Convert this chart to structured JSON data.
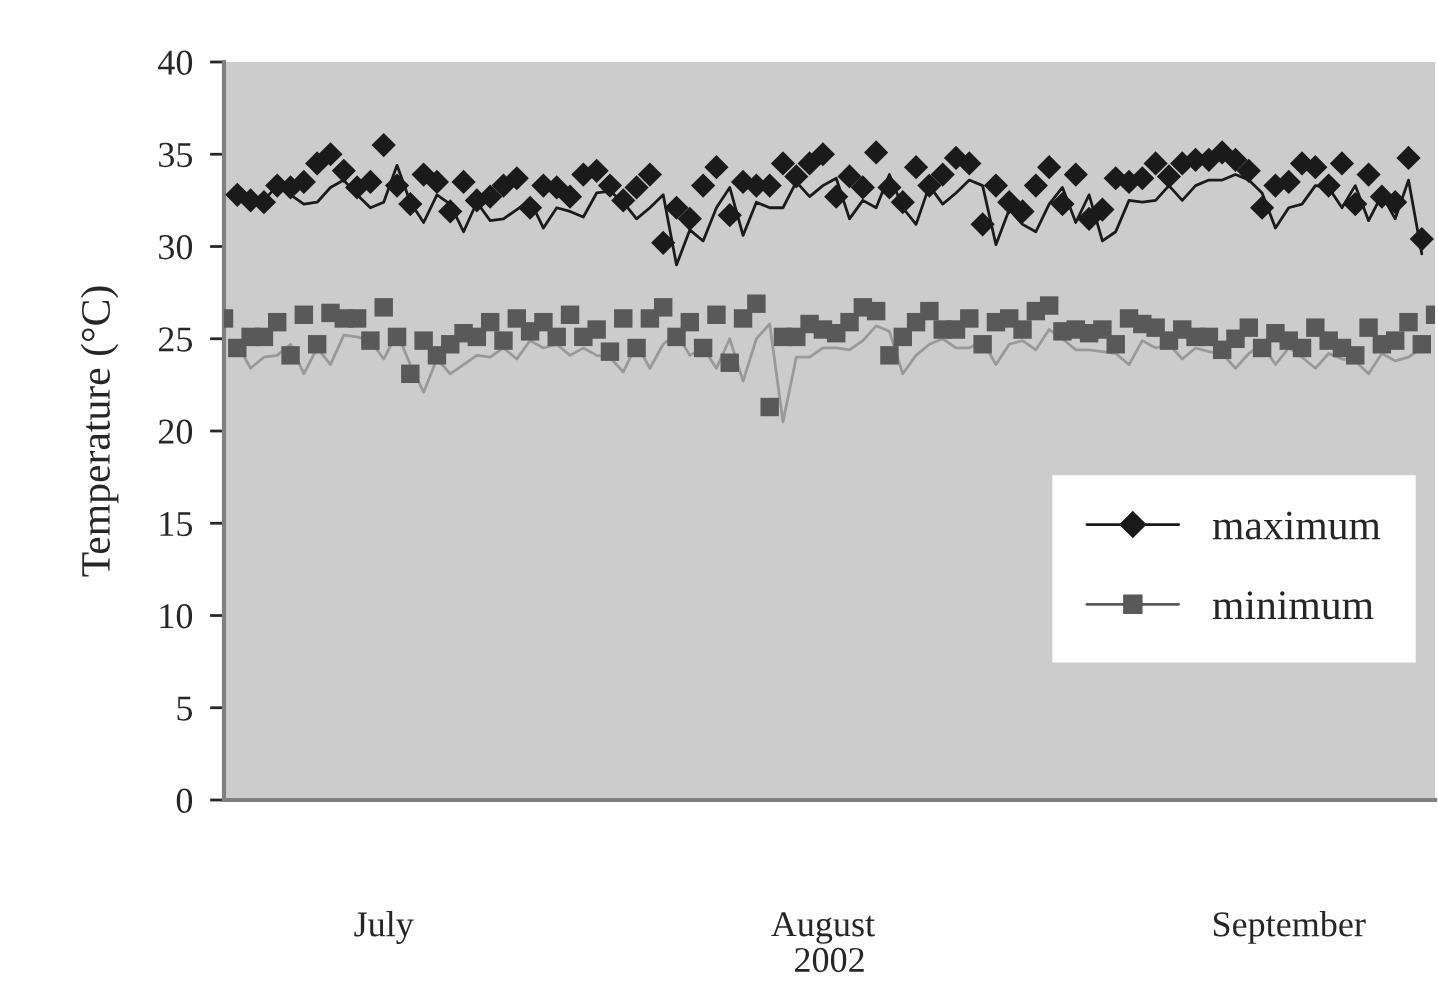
{
  "chart_data": {
    "type": "line",
    "xlabel": "2002",
    "ylabel": "Temperature (°C)",
    "x": [
      "2002-07-01",
      "2002-07-02",
      "2002-07-03",
      "2002-07-04",
      "2002-07-05",
      "2002-07-06",
      "2002-07-07",
      "2002-07-08",
      "2002-07-09",
      "2002-07-10",
      "2002-07-11",
      "2002-07-12",
      "2002-07-13",
      "2002-07-14",
      "2002-07-15",
      "2002-07-16",
      "2002-07-17",
      "2002-07-18",
      "2002-07-19",
      "2002-07-20",
      "2002-07-21",
      "2002-07-22",
      "2002-07-23",
      "2002-07-24",
      "2002-07-25",
      "2002-07-26",
      "2002-07-27",
      "2002-07-28",
      "2002-07-29",
      "2002-07-30",
      "2002-07-31",
      "2002-08-01",
      "2002-08-02",
      "2002-08-03",
      "2002-08-04",
      "2002-08-05",
      "2002-08-06",
      "2002-08-07",
      "2002-08-08",
      "2002-08-09",
      "2002-08-10",
      "2002-08-11",
      "2002-08-12",
      "2002-08-13",
      "2002-08-14",
      "2002-08-15",
      "2002-08-16",
      "2002-08-17",
      "2002-08-18",
      "2002-08-19",
      "2002-08-20",
      "2002-08-21",
      "2002-08-22",
      "2002-08-23",
      "2002-08-24",
      "2002-08-25",
      "2002-08-26",
      "2002-08-27",
      "2002-08-28",
      "2002-08-29",
      "2002-08-30",
      "2002-08-31",
      "2002-09-01",
      "2002-09-02",
      "2002-09-03",
      "2002-09-04",
      "2002-09-05",
      "2002-09-06",
      "2002-09-07",
      "2002-09-08",
      "2002-09-09",
      "2002-09-10",
      "2002-09-11",
      "2002-09-12",
      "2002-09-13",
      "2002-09-14",
      "2002-09-15",
      "2002-09-16",
      "2002-09-17",
      "2002-09-18",
      "2002-09-19",
      "2002-09-20",
      "2002-09-21",
      "2002-09-22",
      "2002-09-23",
      "2002-09-24",
      "2002-09-25",
      "2002-09-26",
      "2002-09-27",
      "2002-09-28"
    ],
    "series": [
      {
        "name": "maximum",
        "type": "scatter",
        "marker": "diamond",
        "color": "#1a1a1a",
        "values": [
          32.8,
          32.5,
          32.4,
          33.3,
          33.2,
          33.5,
          34.5,
          35.0,
          34.1,
          33.2,
          33.5,
          35.5,
          33.3,
          32.3,
          33.9,
          33.5,
          31.9,
          33.5,
          32.5,
          32.7,
          33.3,
          33.7,
          32.1,
          33.3,
          33.2,
          32.7,
          33.9,
          34.1,
          33.3,
          32.5,
          33.2,
          33.9,
          30.2,
          32.1,
          31.5,
          33.3,
          34.3,
          31.7,
          33.5,
          33.3,
          33.3,
          34.5,
          33.8,
          34.5,
          35.0,
          32.7,
          33.8,
          33.2,
          35.1,
          33.2,
          32.4,
          34.3,
          33.3,
          33.9,
          34.8,
          34.5,
          31.2,
          33.3,
          32.4,
          31.9,
          33.3,
          34.3,
          32.3,
          33.9,
          31.5,
          32.0,
          33.7,
          33.5,
          33.7,
          34.5,
          33.8,
          34.5,
          34.7,
          34.7,
          35.1,
          34.7,
          34.1,
          32.1,
          33.3,
          33.5,
          34.5,
          34.3,
          33.3,
          34.5,
          32.3,
          33.9,
          32.7,
          32.4,
          34.8,
          30.4
        ]
      },
      {
        "name": "minimum",
        "type": "scatter",
        "marker": "square",
        "color": "#595959",
        "x": [
          "2002-06-30",
          "2002-07-01",
          "2002-07-02",
          "2002-07-03",
          "2002-07-04",
          "2002-07-05",
          "2002-07-06",
          "2002-07-07",
          "2002-07-08",
          "2002-07-09",
          "2002-07-10",
          "2002-07-11",
          "2002-07-12",
          "2002-07-13",
          "2002-07-14",
          "2002-07-15",
          "2002-07-16",
          "2002-07-17",
          "2002-07-18",
          "2002-07-19",
          "2002-07-20",
          "2002-07-21",
          "2002-07-22",
          "2002-07-23",
          "2002-07-24",
          "2002-07-25",
          "2002-07-26",
          "2002-07-27",
          "2002-07-28",
          "2002-07-29",
          "2002-07-30",
          "2002-07-31",
          "2002-08-01",
          "2002-08-02",
          "2002-08-03",
          "2002-08-04",
          "2002-08-05",
          "2002-08-06",
          "2002-08-07",
          "2002-08-08",
          "2002-08-09",
          "2002-08-10",
          "2002-08-11",
          "2002-08-12",
          "2002-08-13",
          "2002-08-14",
          "2002-08-15",
          "2002-08-16",
          "2002-08-17",
          "2002-08-18",
          "2002-08-19",
          "2002-08-20",
          "2002-08-21",
          "2002-08-22",
          "2002-08-23",
          "2002-08-24",
          "2002-08-25",
          "2002-08-26",
          "2002-08-27",
          "2002-08-28",
          "2002-08-29",
          "2002-08-30",
          "2002-08-31",
          "2002-09-01",
          "2002-09-02",
          "2002-09-03",
          "2002-09-04",
          "2002-09-05",
          "2002-09-06",
          "2002-09-07",
          "2002-09-08",
          "2002-09-09",
          "2002-09-10",
          "2002-09-11",
          "2002-09-12",
          "2002-09-13",
          "2002-09-14",
          "2002-09-15",
          "2002-09-16",
          "2002-09-17",
          "2002-09-18",
          "2002-09-19",
          "2002-09-20",
          "2002-09-21",
          "2002-09-22",
          "2002-09-23",
          "2002-09-24",
          "2002-09-25",
          "2002-09-26",
          "2002-09-27",
          "2002-09-28",
          "2002-09-29"
        ],
        "values": [
          26.1,
          24.5,
          25.1,
          25.1,
          25.9,
          24.1,
          26.3,
          24.7,
          26.4,
          26.1,
          26.1,
          24.9,
          26.7,
          25.1,
          23.1,
          24.9,
          24.1,
          24.7,
          25.3,
          25.1,
          25.9,
          24.9,
          26.1,
          25.4,
          25.9,
          25.1,
          26.3,
          25.1,
          25.5,
          24.3,
          26.1,
          24.5,
          26.1,
          26.7,
          25.1,
          25.9,
          24.5,
          26.3,
          23.7,
          26.1,
          26.9,
          21.3,
          25.1,
          25.1,
          25.8,
          25.5,
          25.3,
          25.9,
          26.7,
          26.5,
          24.1,
          25.1,
          25.9,
          26.5,
          25.5,
          25.5,
          26.1,
          24.7,
          25.9,
          26.1,
          25.5,
          26.5,
          26.8,
          25.4,
          25.5,
          25.3,
          25.5,
          24.7,
          26.1,
          25.8,
          25.6,
          24.9,
          25.5,
          25.1,
          25.1,
          24.4,
          25.0,
          25.6,
          24.5,
          25.3,
          24.9,
          24.5,
          25.6,
          24.9,
          24.5,
          24.1,
          25.6,
          24.7,
          24.9,
          25.9,
          24.7,
          26.3
        ]
      },
      {
        "type": "line",
        "marker": "none",
        "color": "#1a1a1a",
        "values": [
          32.9,
          32.7,
          32.5,
          33.3,
          32.8,
          32.3,
          32.4,
          33.2,
          33.6,
          32.8,
          32.1,
          32.4,
          34.4,
          32.4,
          31.3,
          32.8,
          32.3,
          30.8,
          32.4,
          31.4,
          31.5,
          32.0,
          32.5,
          31.0,
          32.1,
          31.9,
          31.6,
          32.9,
          33.0,
          32.4,
          31.5,
          32.1,
          32.8,
          29.0,
          30.9,
          30.3,
          32.1,
          33.2,
          30.6,
          32.4,
          32.1,
          32.1,
          33.5,
          32.7,
          33.3,
          33.7,
          31.5,
          32.5,
          32.1,
          33.9,
          32.1,
          31.2,
          33.3,
          32.3,
          32.9,
          33.6,
          33.3,
          30.1,
          32.0,
          31.2,
          30.8,
          32.3,
          33.2,
          31.3,
          32.8,
          30.3,
          30.8,
          32.5,
          32.4,
          32.5,
          33.3,
          32.5,
          33.3,
          33.6,
          33.6,
          33.9,
          33.6,
          32.9,
          31.0,
          32.1,
          32.3,
          33.3,
          33.2,
          32.1,
          33.3,
          31.4,
          32.8,
          31.5,
          33.6,
          29.6
        ]
      },
      {
        "type": "line",
        "marker": "none",
        "color": "#999999",
        "values": [
          24.7,
          23.4,
          24.0,
          24.1,
          24.7,
          23.1,
          24.5,
          23.6,
          25.2,
          25.1,
          24.9,
          23.9,
          25.3,
          23.6,
          22.1,
          23.9,
          23.1,
          23.6,
          24.1,
          24.0,
          24.5,
          23.9,
          24.9,
          24.5,
          24.7,
          24.1,
          24.5,
          24.1,
          24.0,
          23.2,
          24.7,
          23.4,
          24.7,
          25.3,
          24.1,
          24.5,
          23.4,
          25.0,
          22.7,
          25.0,
          25.8,
          20.5,
          24.0,
          24.0,
          24.5,
          24.5,
          24.4,
          24.9,
          25.7,
          25.4,
          23.1,
          24.1,
          24.7,
          25.0,
          24.5,
          24.5,
          24.9,
          23.6,
          24.7,
          24.9,
          24.4,
          25.5,
          25.0,
          24.4,
          24.4,
          24.3,
          24.2,
          23.6,
          24.9,
          24.5,
          24.7,
          23.9,
          24.5,
          24.3,
          24.2,
          23.4,
          24.2,
          24.7,
          23.6,
          24.5,
          24.0,
          23.4,
          24.2,
          23.9,
          23.8,
          23.1,
          24.2,
          23.8,
          24.0,
          24.5
        ]
      }
    ],
    "xlim": [
      "2002-06-30",
      "2002-09-29"
    ],
    "xticks": [
      {
        "value": "2002-07-12",
        "label": "July"
      },
      {
        "value": "2002-08-14",
        "label": "August"
      },
      {
        "value": "2002-09-18",
        "label": "September"
      }
    ],
    "ylim": [
      0,
      40
    ],
    "yticks": [
      0,
      5,
      10,
      15,
      20,
      25,
      30,
      35,
      40
    ],
    "grid": false,
    "legend": "right",
    "line_style": "solid"
  }
}
